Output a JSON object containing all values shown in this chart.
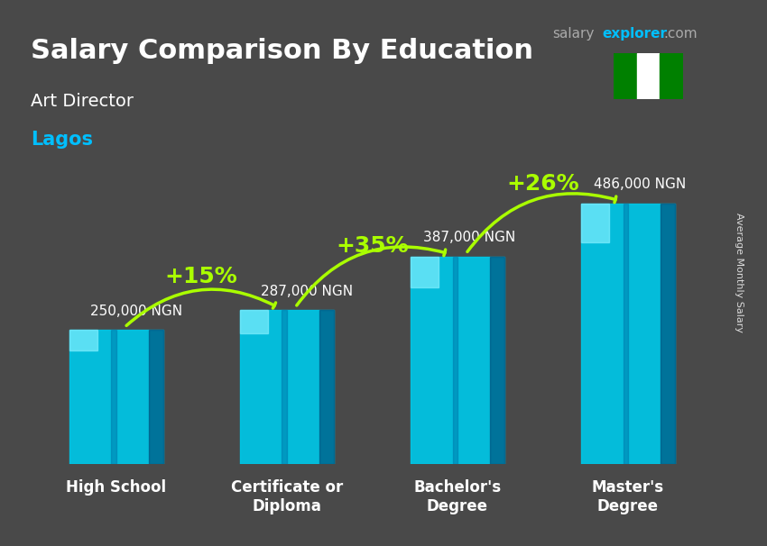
{
  "title": "Salary Comparison By Education",
  "subtitle": "Art Director",
  "location": "Lagos",
  "ylabel": "Average Monthly Salary",
  "categories": [
    "High School",
    "Certificate or\nDiploma",
    "Bachelor's\nDegree",
    "Master's\nDegree"
  ],
  "values": [
    250000,
    287000,
    387000,
    486000
  ],
  "labels": [
    "250,000 NGN",
    "287,000 NGN",
    "387,000 NGN",
    "486,000 NGN"
  ],
  "pct_changes": [
    "+15%",
    "+35%",
    "+26%"
  ],
  "bar_color_top": "#00e5ff",
  "bar_color_bottom": "#0088cc",
  "bar_color_mid": "#00bcd4",
  "background_color": "#2a2a2a",
  "title_color": "#ffffff",
  "subtitle_color": "#ffffff",
  "location_color": "#00bfff",
  "label_color": "#ffffff",
  "arrow_color": "#aaff00",
  "pct_color": "#aaff00",
  "ylabel_color": "#ffffff",
  "watermark_salary": "salary",
  "watermark_explorer": "explorer",
  "watermark_com": ".com",
  "nigeria_flag_colors": [
    "#008000",
    "#ffffff",
    "#008000"
  ],
  "bar_width": 0.55,
  "ylim": [
    0,
    580000
  ],
  "figsize": [
    8.5,
    6.06
  ],
  "dpi": 100
}
